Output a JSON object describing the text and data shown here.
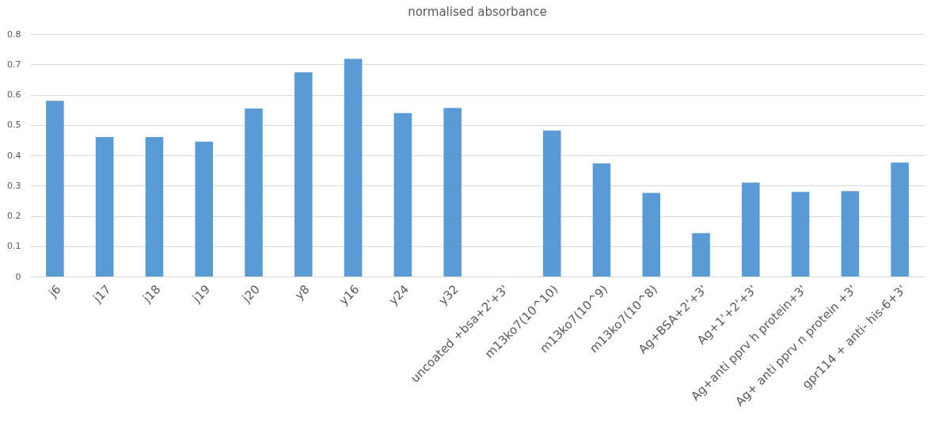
{
  "chart_data": {
    "type": "bar",
    "title": "normalised absorbance",
    "categories": [
      "j6",
      "j17",
      "j18",
      "j19",
      "j20",
      "y8",
      "y16",
      "y24",
      "y32",
      "uncoated +bsa+2'+3'",
      "m13ko7(10^10)",
      "m13ko7(10^9)",
      "m13ko7(10^8)",
      "Ag+BSA+2'+3'",
      "Ag+1'+2'+3'",
      "Ag+anti pprv h protein+3'",
      "Ag+ anti pprv n protein +3'",
      "gpr114 + anti- his-6+3'"
    ],
    "values": [
      0.58,
      0.46,
      0.46,
      0.445,
      0.554,
      0.674,
      0.718,
      0.539,
      0.556,
      0,
      0.482,
      0.373,
      0.276,
      0.143,
      0.31,
      0.279,
      0.282,
      0.376
    ],
    "color": "#5b9bd5",
    "ylim": [
      0,
      0.8
    ],
    "yticks": [
      0,
      0.1,
      0.2,
      0.3,
      0.4,
      0.5,
      0.6,
      0.7,
      0.8
    ],
    "grid": "y"
  }
}
